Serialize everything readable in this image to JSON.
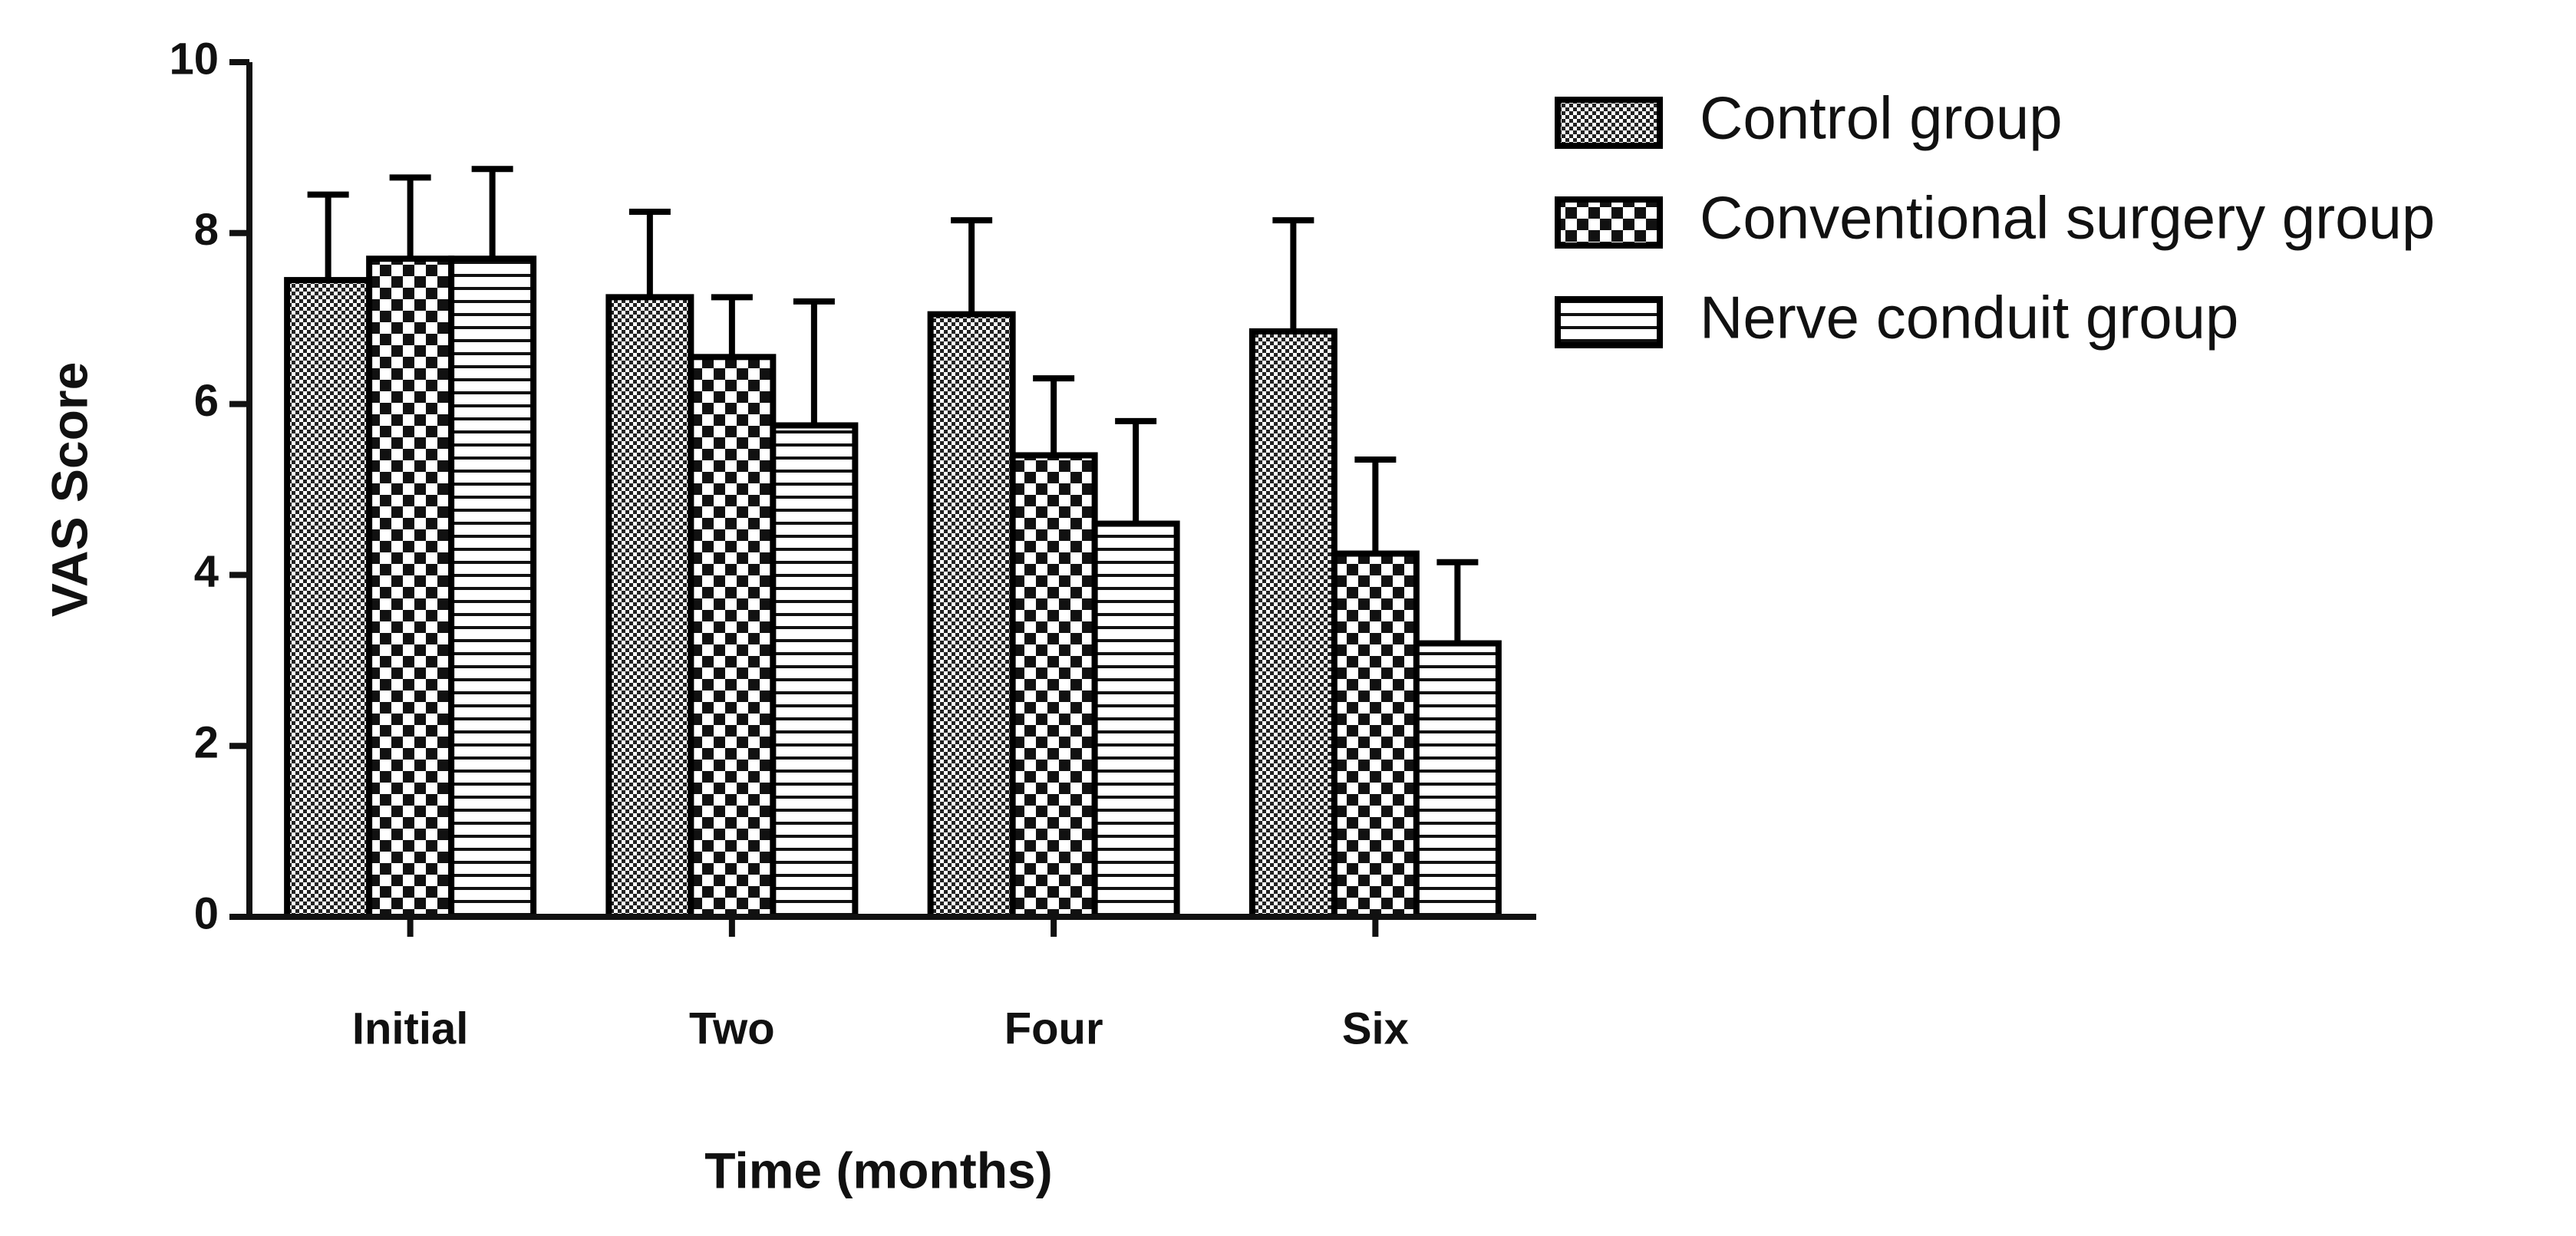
{
  "chart_data": {
    "type": "bar",
    "x_label": "Time (months)",
    "y_label": "VAS Score",
    "categories": [
      "Initial",
      "Two",
      "Four",
      "Six"
    ],
    "series": [
      {
        "name": "Control group",
        "color": "#000000",
        "pattern": "dots",
        "values": [
          7.45,
          7.25,
          7.05,
          6.85
        ],
        "errors": [
          1.0,
          1.0,
          1.1,
          1.3
        ]
      },
      {
        "name": "Conventional surgery group",
        "color": "#000000",
        "pattern": "checker",
        "values": [
          7.7,
          6.55,
          5.4,
          4.25
        ],
        "errors": [
          0.95,
          0.7,
          0.9,
          1.1
        ]
      },
      {
        "name": "Nerve conduit group",
        "color": "#000000",
        "pattern": "hlines",
        "values": [
          7.7,
          5.75,
          4.6,
          3.2
        ],
        "errors": [
          1.05,
          1.45,
          1.2,
          0.95
        ]
      }
    ],
    "ylim": [
      0,
      10
    ],
    "yticks": [
      0,
      2,
      4,
      6,
      8,
      10
    ],
    "grid": false,
    "legend": "right"
  }
}
